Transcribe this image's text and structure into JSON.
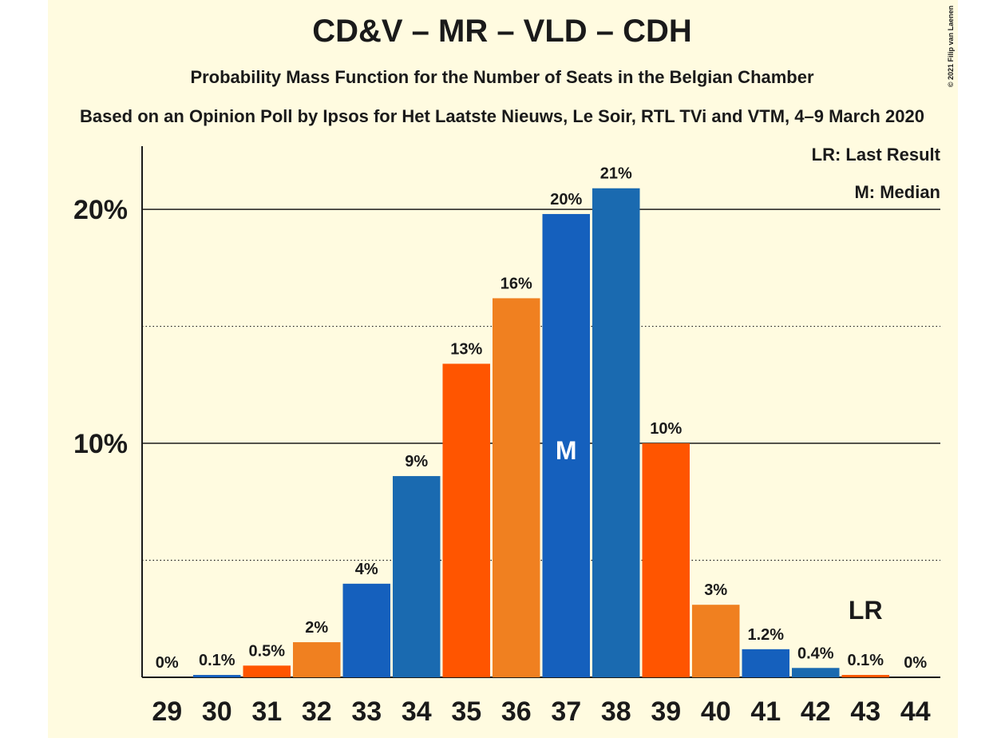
{
  "chart_data": {
    "type": "bar",
    "title": "CD&V – MR – VLD – CDH",
    "subtitle": [
      "Probability Mass Function for the Number of Seats in the Belgian Chamber",
      "Based on an Opinion Poll by Ipsos for Het Laatste Nieuws, Le Soir, RTL TVi and VTM, 4–9 March 2020"
    ],
    "categories": [
      "29",
      "30",
      "31",
      "32",
      "33",
      "34",
      "35",
      "36",
      "37",
      "38",
      "39",
      "40",
      "41",
      "42",
      "43",
      "44"
    ],
    "values": [
      0,
      0.1,
      0.5,
      1.5,
      4.0,
      8.6,
      13.4,
      16.2,
      19.8,
      20.9,
      10.0,
      3.1,
      1.2,
      0.4,
      0.1,
      0
    ],
    "value_labels": [
      "0%",
      "0.1%",
      "0.5%",
      "2%",
      "4%",
      "9%",
      "13%",
      "16%",
      "20%",
      "21%",
      "10%",
      "3%",
      "1.2%",
      "0.4%",
      "0.1%",
      "0%"
    ],
    "colors": [
      "#1a6ab0",
      "#1560bd",
      "#ff5500",
      "#f08020",
      "#1560bd",
      "#1a6ab0",
      "#ff5500",
      "#f08020",
      "#1560bd",
      "#1a6ab0",
      "#ff5500",
      "#f08020",
      "#1560bd",
      "#1a6ab0",
      "#ff5500",
      "#f08020"
    ],
    "ylim": [
      0,
      22.7
    ],
    "yticks": [
      {
        "value": 10,
        "label": "10%"
      },
      {
        "value": 20,
        "label": "20%"
      }
    ],
    "minor_yticks": [
      5,
      15
    ],
    "grid": true,
    "median": {
      "at": "37",
      "label": "M"
    },
    "last_result": {
      "at": "43",
      "label": "LR"
    },
    "notes": [
      "LR: Last Result",
      "M: Median"
    ],
    "credit": "© 2021 Filip van Laenen"
  }
}
